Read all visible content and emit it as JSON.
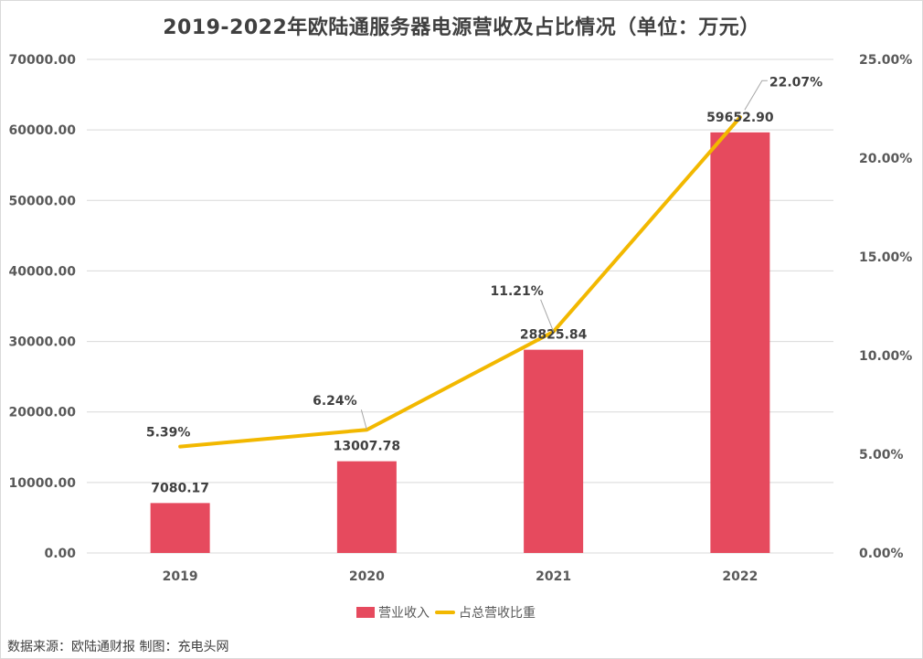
{
  "chart_data": {
    "type": "bar+line",
    "title": "2019-2022年欧陆通服务器电源营收及占比情况（单位：万元）",
    "categories": [
      "2019",
      "2020",
      "2021",
      "2022"
    ],
    "series": [
      {
        "name": "营业收入",
        "type": "bar",
        "axis": "left",
        "color": "#e64a5e",
        "values": [
          7080.17,
          13007.78,
          28825.84,
          59652.9
        ],
        "labels": [
          "7080.17",
          "13007.78",
          "28825.84",
          "59652.90"
        ]
      },
      {
        "name": "占总营收比重",
        "type": "line",
        "axis": "right",
        "color": "#f2b800",
        "values": [
          5.39,
          6.24,
          11.21,
          22.07
        ],
        "labels": [
          "5.39%",
          "6.24%",
          "11.21%",
          "22.07%"
        ]
      }
    ],
    "y_left": {
      "ylim": [
        0,
        70000
      ],
      "ticks": [
        "0.00",
        "10000.00",
        "20000.00",
        "30000.00",
        "40000.00",
        "50000.00",
        "60000.00",
        "70000.00"
      ]
    },
    "y_right": {
      "ylim": [
        0,
        25
      ],
      "ticks": [
        "0.00%",
        "5.00%",
        "10.00%",
        "15.00%",
        "20.00%",
        "25.00%"
      ]
    },
    "grid": true,
    "legend_position": "bottom"
  },
  "legend": {
    "bar_label": "营业收入",
    "line_label": "占总营收比重"
  },
  "source_note": "数据来源：欧陆通财报 制图：充电头网"
}
